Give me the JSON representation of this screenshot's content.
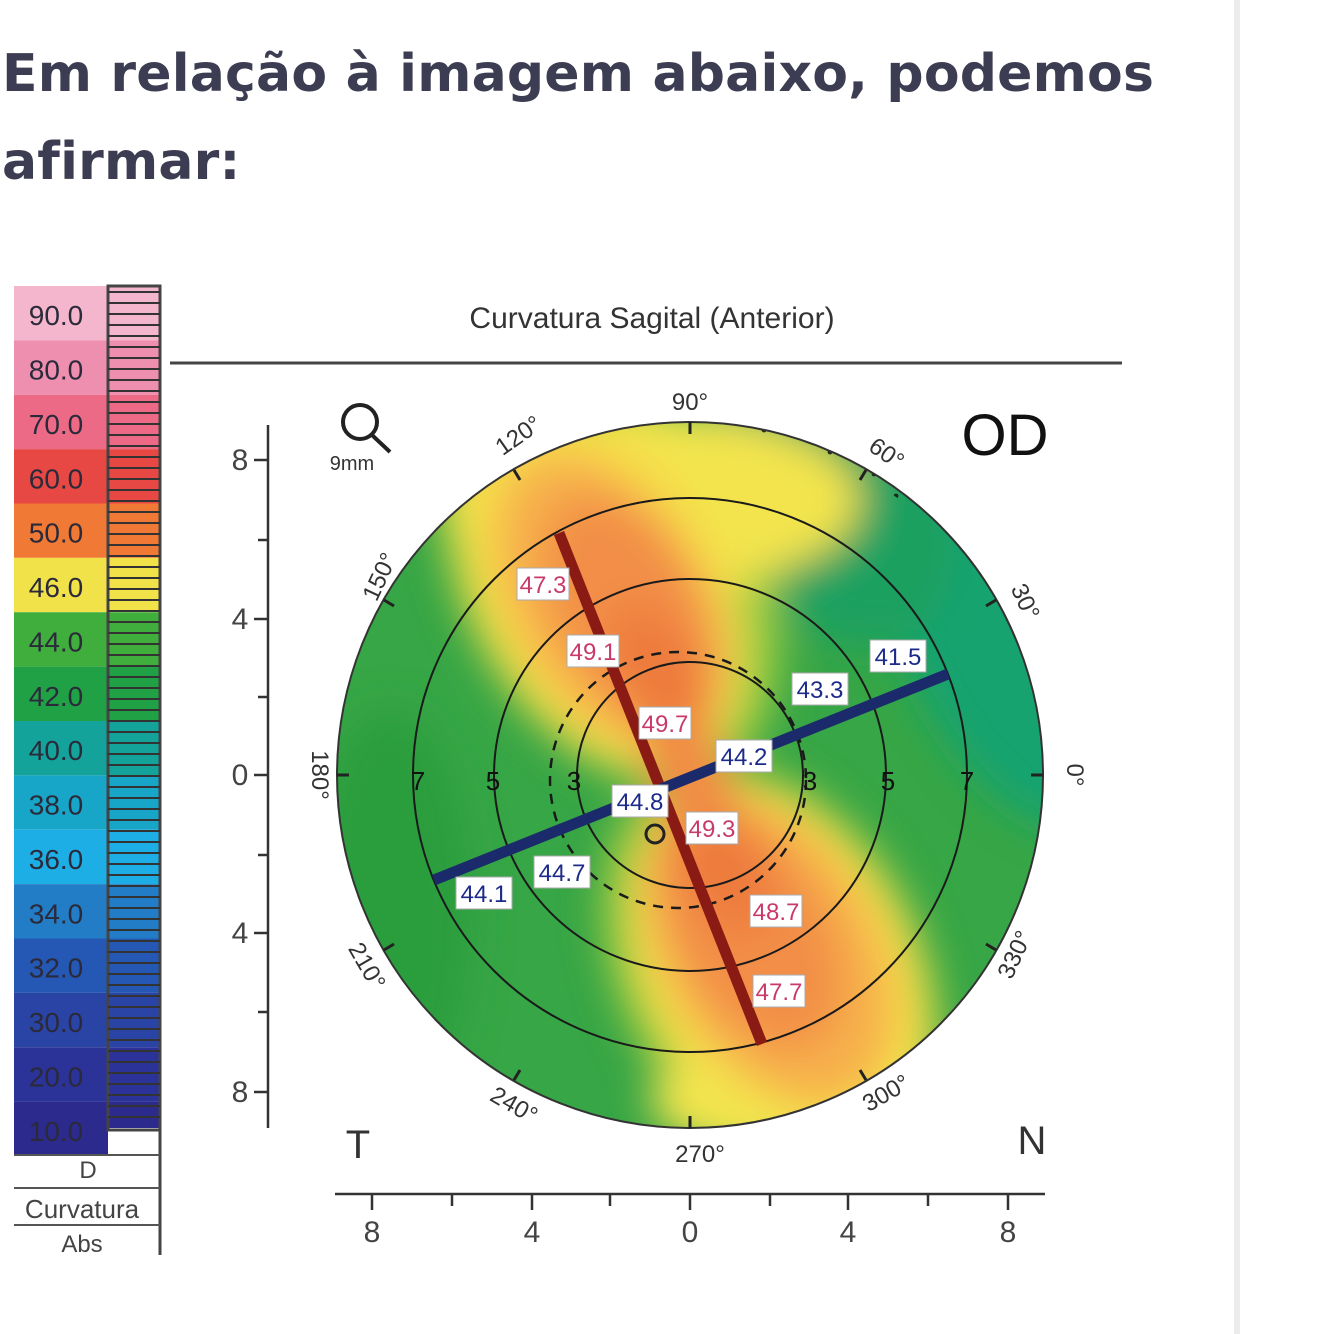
{
  "question": "Em relação à imagem abaixo, podemos afirmar:",
  "figure": {
    "title": "Curvatura Sagital (Anterior)",
    "eye": "OD",
    "temporal_label": "T",
    "nasal_label": "N",
    "zoom_label": "9mm",
    "scale": {
      "unit": "D",
      "caption_1": "Curvatura",
      "caption_2": "Abs",
      "entries": [
        {
          "value": "90.0",
          "color": "#f4b6cc"
        },
        {
          "value": "80.0",
          "color": "#ef8fb0"
        },
        {
          "value": "70.0",
          "color": "#ec6a85"
        },
        {
          "value": "60.0",
          "color": "#e84843"
        },
        {
          "value": "50.0",
          "color": "#f07a35"
        },
        {
          "value": "46.0",
          "color": "#f2e24a"
        },
        {
          "value": "44.0",
          "color": "#3fae3d"
        },
        {
          "value": "42.0",
          "color": "#21a145"
        },
        {
          "value": "40.0",
          "color": "#14a39a"
        },
        {
          "value": "38.0",
          "color": "#18a6c8"
        },
        {
          "value": "36.0",
          "color": "#1eaee6"
        },
        {
          "value": "34.0",
          "color": "#237cc6"
        },
        {
          "value": "32.0",
          "color": "#2458b4"
        },
        {
          "value": "30.0",
          "color": "#2a44a6"
        },
        {
          "value": "20.0",
          "color": "#2c3398"
        },
        {
          "value": "10.0",
          "color": "#2c2a8c"
        }
      ]
    },
    "angles": [
      "90°",
      "120°",
      "60°",
      "150°",
      "30°",
      "0°",
      "180°",
      "210°",
      "330°",
      "240°",
      "300°",
      "270°"
    ],
    "ring_labels": [
      "7",
      "5",
      "3",
      "3",
      "5",
      "7"
    ],
    "left_axis_ticks": [
      "8",
      "4",
      "0",
      "4",
      "8"
    ],
    "bottom_axis_ticks": [
      "8",
      "4",
      "0",
      "4",
      "8"
    ],
    "steep_meridian_values": [
      "47.3",
      "49.1",
      "49.7",
      "49.3",
      "48.7",
      "47.7"
    ],
    "flat_meridian_values": [
      "41.5",
      "43.3",
      "44.2",
      "44.8",
      "44.7",
      "44.1"
    ],
    "colors": {
      "steep_meridian": "#8a1a14",
      "flat_meridian": "#1b2a6b",
      "steep_label_text": "#c93a6a",
      "flat_label_text": "#1c2b8a"
    }
  }
}
